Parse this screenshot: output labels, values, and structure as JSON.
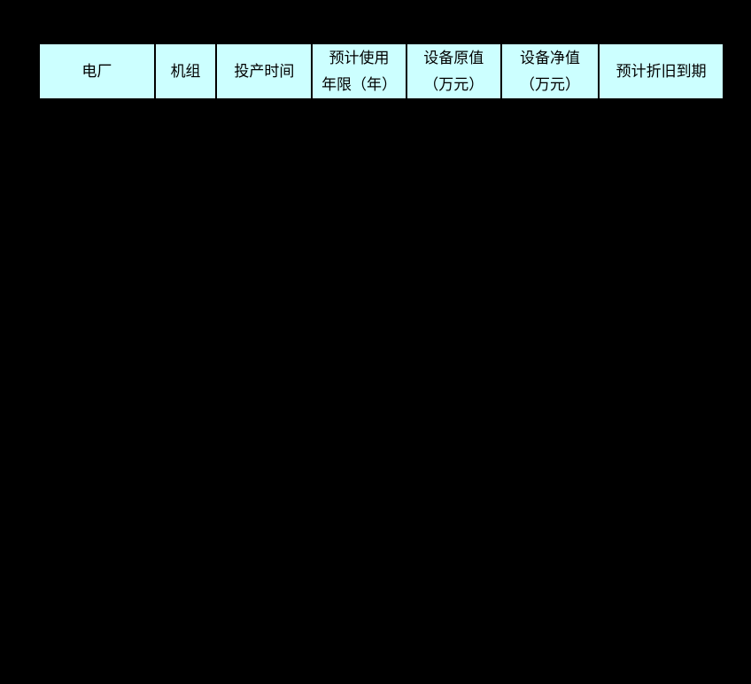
{
  "page": {
    "background_color": "#000000"
  },
  "table": {
    "cell_background_color": "#CCFFFF",
    "border_color": "#000000",
    "text_color": "#000000",
    "columns": [
      {
        "label": "电厂"
      },
      {
        "label": "机组"
      },
      {
        "label": "投产时间"
      },
      {
        "label": "预计使用\n年限（年）"
      },
      {
        "label": "设备原值\n（万元）"
      },
      {
        "label": "设备净值\n（万元）"
      },
      {
        "label": "预计折旧到期"
      }
    ]
  }
}
